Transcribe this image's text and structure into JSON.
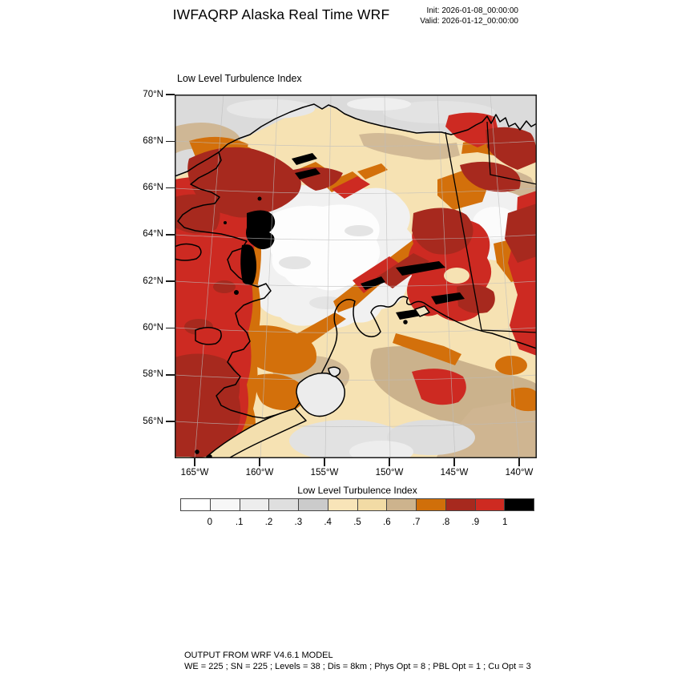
{
  "header": {
    "title": "IWFAQRP Alaska Real Time WRF",
    "init": "Init: 2026-01-08_00:00:00",
    "valid": "Valid: 2026-01-12_00:00:00"
  },
  "map": {
    "title": "Low Level Turbulence Index",
    "lat_ticks": [
      "70°N",
      "68°N",
      "66°N",
      "64°N",
      "62°N",
      "60°N",
      "58°N",
      "56°N"
    ],
    "lon_ticks": [
      "165°W",
      "160°W",
      "155°W",
      "150°W",
      "145°W",
      "140°W"
    ]
  },
  "colorbar": {
    "title": "Low Level Turbulence Index",
    "labels": [
      "0",
      ".1",
      ".2",
      ".3",
      ".4",
      ".5",
      ".6",
      ".7",
      ".8",
      ".9",
      "1"
    ],
    "colors": [
      "#FFFFFF",
      "#F7F7F7",
      "#EDEDED",
      "#DFDFDF",
      "#CBCBCB",
      "#F8E4B8",
      "#F2DBA5",
      "#CDB38D",
      "#D06F0A",
      "#A7291E",
      "#CE2A21",
      "#000000"
    ]
  },
  "footer": {
    "line1": "OUTPUT FROM WRF V4.6.1 MODEL",
    "line2": "WE = 225 ; SN = 225 ; Levels = 38 ; Dis = 8km ; Phys Opt = 8 ; PBL Opt = 1 ; Cu Opt = 3"
  },
  "chart_data": {
    "type": "heatmap",
    "subtype": "filled_contour_map",
    "title": "Low Level Turbulence Index",
    "model_header": "IWFAQRP Alaska Real Time WRF",
    "init_time": "2026-01-08_00:00:00",
    "valid_time": "2026-01-12_00:00:00",
    "region": "Alaska",
    "lat_axis": {
      "ticks_deg_N": [
        70,
        68,
        66,
        64,
        62,
        60,
        58,
        56
      ],
      "tick_labels": [
        "70°N",
        "68°N",
        "66°N",
        "64°N",
        "62°N",
        "60°N",
        "58°N",
        "56°N"
      ]
    },
    "lon_axis": {
      "ticks_deg_W": [
        165,
        160,
        155,
        150,
        145,
        140
      ],
      "tick_labels": [
        "165°W",
        "160°W",
        "155°W",
        "150°W",
        "145°W",
        "140°W"
      ]
    },
    "contour_levels": [
      0,
      0.1,
      0.2,
      0.3,
      0.4,
      0.5,
      0.6,
      0.7,
      0.8,
      0.9,
      1
    ],
    "fill_colors": [
      "#FFFFFF",
      "#F7F7F7",
      "#EDEDED",
      "#DFDFDF",
      "#CBCBCB",
      "#F8E4B8",
      "#F2DBA5",
      "#CDB38D",
      "#D06F0A",
      "#A7291E",
      "#CE2A21",
      "#000000"
    ],
    "legend_position": "bottom",
    "grid": "faint gray lat/lon graticule",
    "model_params": {
      "WE": 225,
      "SN": 225,
      "Levels": 38,
      "Dis": "8km",
      "Phys Opt": 8,
      "PBL Opt": 1,
      "Cu Opt": 3
    },
    "pattern_summary": "Very high index (0.8 to >1, red/dark-red with black cores) over the Bering Sea, Seward Peninsula and western coast; high bands (0.7-1) along interior mountain ranges and near the Canada border; low values (0-0.4, white/gray) over the central interior, Arctic coast and Gulf of Alaska; moderate cream/tan (0.4-0.7) elsewhere"
  }
}
